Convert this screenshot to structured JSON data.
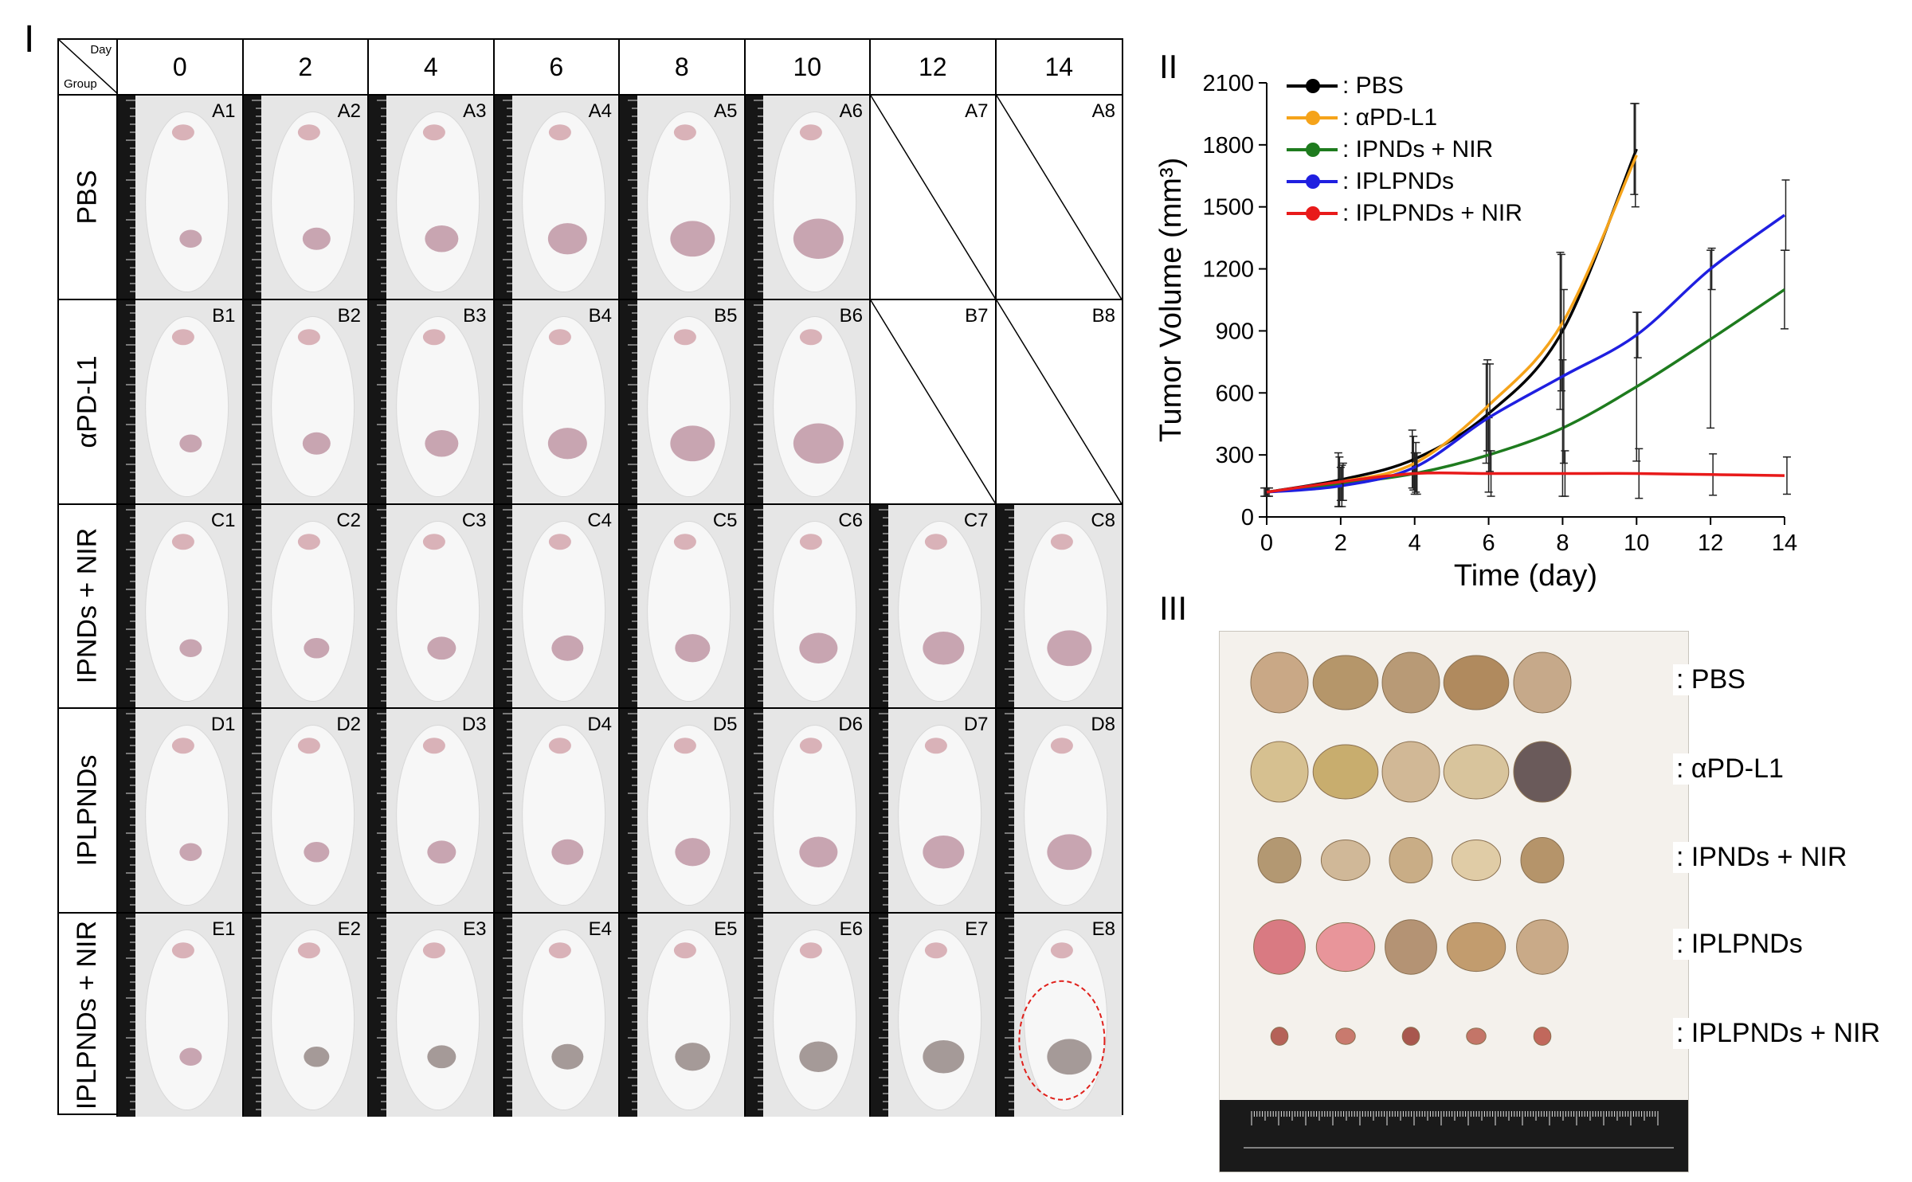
{
  "panels": {
    "p1": "I",
    "p2": "II",
    "p3": "III"
  },
  "grid": {
    "corner_day": "Day",
    "corner_group": "Group",
    "days": [
      "0",
      "2",
      "4",
      "6",
      "8",
      "10",
      "12",
      "14"
    ],
    "groups": [
      "PBS",
      "αPD-L1",
      "IPNDs + NIR",
      "IPLPNDs",
      "IPLPNDs + NIR"
    ],
    "cells": [
      [
        "A1",
        "A2",
        "A3",
        "A4",
        "A5",
        "A6",
        "A7",
        "A8"
      ],
      [
        "B1",
        "B2",
        "B3",
        "B4",
        "B5",
        "B6",
        "B7",
        "B8"
      ],
      [
        "C1",
        "C2",
        "C3",
        "C4",
        "C5",
        "C6",
        "C7",
        "C8"
      ],
      [
        "D1",
        "D2",
        "D3",
        "D4",
        "D5",
        "D6",
        "D7",
        "D8"
      ],
      [
        "E1",
        "E2",
        "E3",
        "E4",
        "E5",
        "E6",
        "E7",
        "E8"
      ]
    ],
    "empty_cells": [
      "A7",
      "A8",
      "B7",
      "B8"
    ],
    "highlight_cell": "E8",
    "highlight_color": "#e0201b"
  },
  "chart_data": {
    "type": "line",
    "title": "",
    "xlabel": "Time (day)",
    "ylabel": "Tumor Volume (mm³)",
    "xlim": [
      0,
      14
    ],
    "ylim": [
      0,
      2100
    ],
    "xticks": [
      0,
      2,
      4,
      6,
      8,
      10,
      12,
      14
    ],
    "yticks": [
      0,
      300,
      600,
      900,
      1200,
      1500,
      1800,
      2100
    ],
    "legend_position": "top-left",
    "grid": false,
    "series": [
      {
        "name": ": PBS",
        "color": "#000000",
        "x": [
          0,
          2,
          4,
          6,
          8,
          10
        ],
        "y": [
          120,
          180,
          280,
          500,
          900,
          1780
        ],
        "err": [
          20,
          130,
          140,
          240,
          380,
          220
        ]
      },
      {
        "name": ": αPD-L1",
        "color": "#f5a31a",
        "x": [
          0,
          2,
          4,
          6,
          8,
          10
        ],
        "y": [
          120,
          170,
          260,
          540,
          940,
          1750
        ],
        "err": [
          20,
          120,
          130,
          220,
          330,
          250
        ]
      },
      {
        "name": ": IPNDs + NIR",
        "color": "#1e7b1e",
        "x": [
          0,
          2,
          4,
          6,
          8,
          10,
          12,
          14
        ],
        "y": [
          120,
          160,
          210,
          300,
          430,
          630,
          860,
          1100
        ],
        "err": [
          20,
          80,
          100,
          180,
          330,
          360,
          430,
          190
        ]
      },
      {
        "name": ": IPLPNDs",
        "color": "#1f1fe0",
        "x": [
          0,
          2,
          4,
          6,
          8,
          10,
          12,
          14
        ],
        "y": [
          120,
          150,
          240,
          480,
          680,
          880,
          1200,
          1460
        ],
        "err": [
          20,
          100,
          120,
          260,
          420,
          110,
          100,
          170
        ]
      },
      {
        "name": ": IPLPNDs + NIR",
        "color": "#e81a1a",
        "x": [
          0,
          2,
          4,
          6,
          8,
          10,
          12,
          14
        ],
        "y": [
          120,
          170,
          210,
          210,
          210,
          210,
          205,
          200
        ],
        "err": [
          20,
          90,
          100,
          110,
          110,
          120,
          100,
          90
        ]
      }
    ]
  },
  "tumors": {
    "labels": [
      ": PBS",
      ": αPD-L1",
      ": IPNDs + NIR",
      ": IPLPNDs",
      ": IPLPNDs + NIR"
    ]
  }
}
